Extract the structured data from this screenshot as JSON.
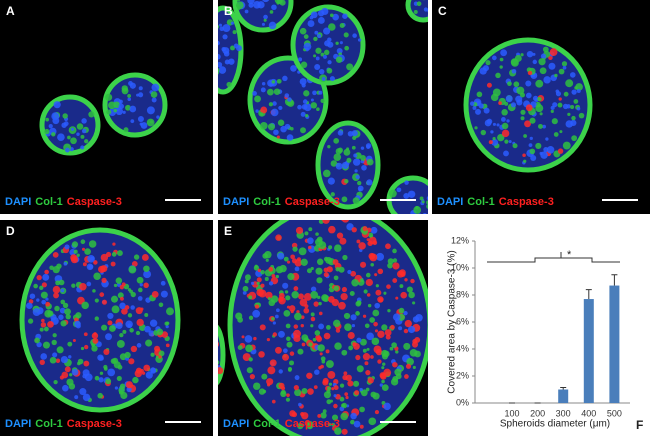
{
  "panels": [
    {
      "label": "A",
      "stains": [
        "DAPI",
        "Col-1",
        "Caspase-3"
      ]
    },
    {
      "label": "B",
      "stains": [
        "DAPI",
        "Col-1",
        "Caspase-3"
      ]
    },
    {
      "label": "C",
      "stains": [
        "DAPI",
        "Col-1",
        "Caspase-3"
      ]
    },
    {
      "label": "D",
      "stains": [
        "DAPI",
        "Col-1",
        "Caspase-3"
      ]
    },
    {
      "label": "E",
      "stains": [
        "DAPI",
        "Col-1",
        "Caspase-3"
      ]
    }
  ],
  "chart_data": {
    "type": "bar",
    "panel_label": "F",
    "y_label": "Covered area by Caspase-3 (%)",
    "x_label": "Spheroids diameter (μm)",
    "categories": [
      "100",
      "200",
      "300",
      "400",
      "500"
    ],
    "values": [
      0,
      0,
      1.0,
      7.7,
      8.7
    ],
    "errors": [
      0,
      0,
      0.15,
      0.7,
      0.8
    ],
    "color": "#4a7ebb",
    "ylim": [
      0,
      12
    ],
    "yticks": [
      {
        "value": 0,
        "label": "0%"
      },
      {
        "value": 2,
        "label": "2%"
      },
      {
        "value": 4,
        "label": "4%"
      },
      {
        "value": 6,
        "label": "6%"
      },
      {
        "value": 8,
        "label": "8%"
      },
      {
        "value": 10,
        "label": "10%"
      },
      {
        "value": 12,
        "label": "12%"
      }
    ],
    "annotation": "*"
  }
}
